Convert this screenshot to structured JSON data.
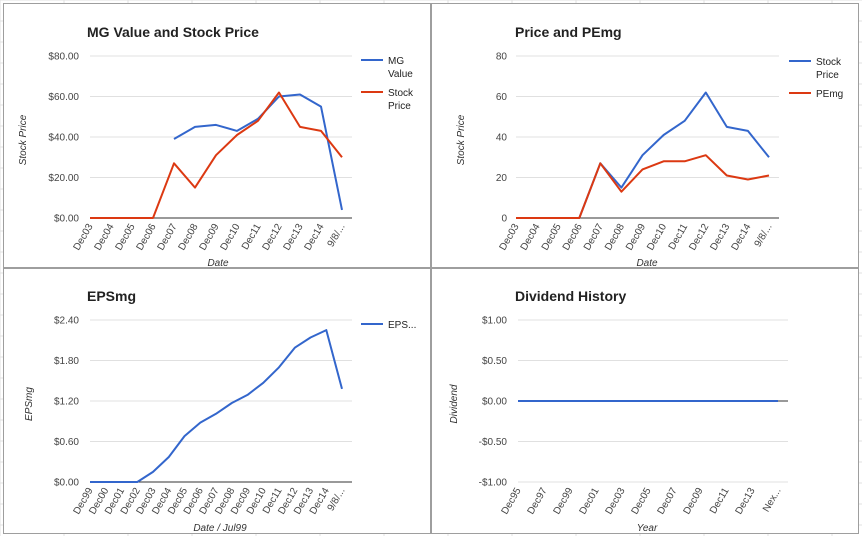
{
  "colors": {
    "blue": "#3366cc",
    "red": "#dc3912",
    "grid": "#e0e0e0",
    "axis": "#333333"
  },
  "chart_data": [
    {
      "id": "mg",
      "type": "line",
      "title": "MG Value and Stock Price",
      "xlabel": "Date",
      "ylabel": "Stock Price",
      "categories": [
        "Dec03",
        "Dec04",
        "Dec05",
        "Dec06",
        "Dec07",
        "Dec08",
        "Dec09",
        "Dec10",
        "Dec11",
        "Dec12",
        "Dec13",
        "Dec14",
        "9/8/..."
      ],
      "ylim": [
        0,
        80
      ],
      "yticks": [
        0,
        20,
        40,
        60,
        80
      ],
      "ytick_labels": [
        "$0.00",
        "$20.00",
        "$40.00",
        "$60.00",
        "$80.00"
      ],
      "grid": true,
      "legend_position": "right",
      "series": [
        {
          "name": "MG Value",
          "color": "#3366cc",
          "values": [
            null,
            null,
            null,
            null,
            39,
            45,
            46,
            43,
            49,
            60,
            61,
            55,
            4
          ]
        },
        {
          "name": "Stock Price",
          "color": "#dc3912",
          "values": [
            0,
            0,
            0,
            0,
            27,
            15,
            31,
            41,
            48,
            62,
            45,
            43,
            30
          ]
        }
      ]
    },
    {
      "id": "pe",
      "type": "line",
      "title": "Price and PEmg",
      "xlabel": "Date",
      "ylabel": "Stock Price",
      "categories": [
        "Dec03",
        "Dec04",
        "Dec05",
        "Dec06",
        "Dec07",
        "Dec08",
        "Dec09",
        "Dec10",
        "Dec11",
        "Dec12",
        "Dec13",
        "Dec14",
        "9/8/..."
      ],
      "ylim": [
        0,
        80
      ],
      "yticks": [
        0,
        20,
        40,
        60,
        80
      ],
      "ytick_labels": [
        "0",
        "20",
        "40",
        "60",
        "80"
      ],
      "grid": true,
      "legend_position": "right",
      "series": [
        {
          "name": "Stock Price",
          "color": "#3366cc",
          "values": [
            0,
            0,
            0,
            0,
            27,
            15,
            31,
            41,
            48,
            62,
            45,
            43,
            30
          ]
        },
        {
          "name": "PEmg",
          "color": "#dc3912",
          "values": [
            0,
            0,
            0,
            0,
            27,
            13,
            24,
            28,
            28,
            31,
            21,
            19,
            21
          ]
        }
      ]
    },
    {
      "id": "eps",
      "type": "line",
      "title": "EPSmg",
      "xlabel": "Date / Jul99",
      "ylabel": "EPSmg",
      "categories": [
        "Dec99",
        "Dec00",
        "Dec01",
        "Dec02",
        "Dec03",
        "Dec04",
        "Dec05",
        "Dec06",
        "Dec07",
        "Dec08",
        "Dec09",
        "Dec10",
        "Dec11",
        "Dec12",
        "Dec13",
        "Dec14",
        "9/8/..."
      ],
      "ylim": [
        0,
        2.4
      ],
      "yticks": [
        0,
        0.6,
        1.2,
        1.8,
        2.4
      ],
      "ytick_labels": [
        "$0.00",
        "$0.60",
        "$1.20",
        "$1.80",
        "$2.40"
      ],
      "grid": true,
      "legend_position": "right",
      "series": [
        {
          "name": "EPS...",
          "color": "#3366cc",
          "values": [
            0,
            0,
            0,
            0,
            0.15,
            0.37,
            0.68,
            0.88,
            1.01,
            1.17,
            1.29,
            1.47,
            1.7,
            1.99,
            2.14,
            2.25,
            1.38
          ]
        }
      ]
    },
    {
      "id": "div",
      "type": "line",
      "title": "Dividend History",
      "xlabel": "Year",
      "ylabel": "Dividend",
      "categories": [
        "Dec95",
        "Dec97",
        "Dec99",
        "Dec01",
        "Dec03",
        "Dec05",
        "Dec07",
        "Dec09",
        "Dec11",
        "Dec13",
        "Nex..."
      ],
      "ylim": [
        -1,
        1
      ],
      "yticks": [
        -1,
        -0.5,
        0,
        0.5,
        1
      ],
      "ytick_labels": [
        "-$1.00",
        "-$0.50",
        "$0.00",
        "$0.50",
        "$1.00"
      ],
      "grid": true,
      "legend_position": "none",
      "series": [
        {
          "name": "",
          "color": "#3366cc",
          "values": [
            0,
            0,
            0,
            0,
            0,
            0,
            0,
            0,
            0,
            0,
            0
          ]
        }
      ]
    }
  ]
}
